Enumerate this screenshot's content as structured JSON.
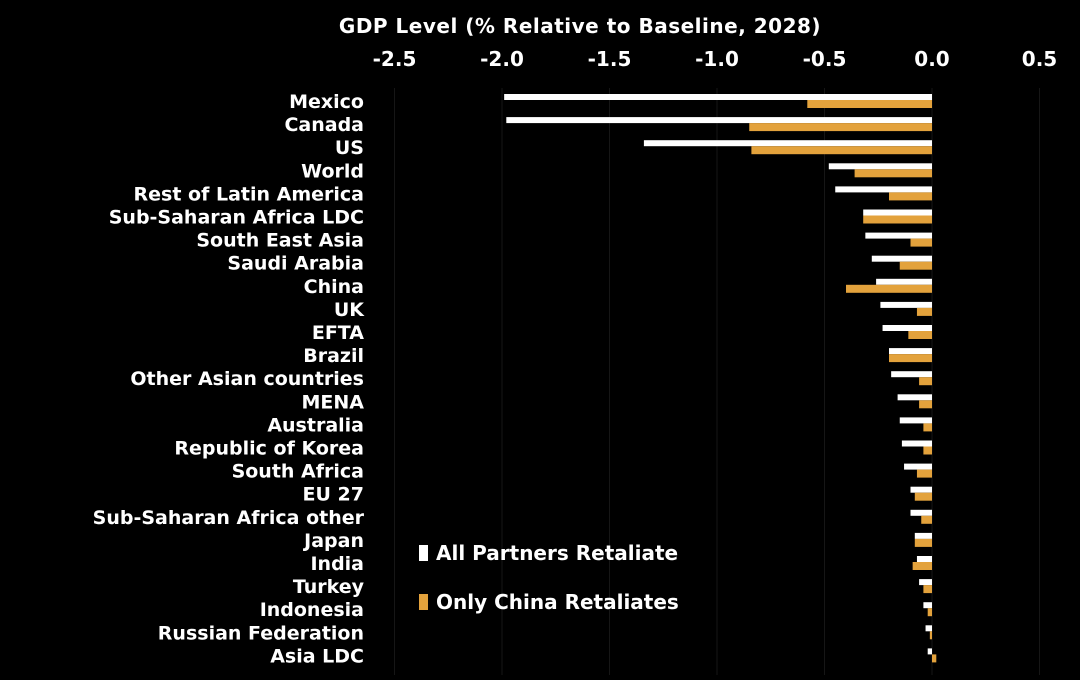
{
  "chart_data": {
    "type": "bar",
    "orientation": "horizontal",
    "title": "GDP Level (% Relative to Baseline, 2028)",
    "xlim": [
      -2.5,
      0.5
    ],
    "xticks": [
      "-2.5",
      "-2.0",
      "-1.5",
      "-1.0",
      "-0.5",
      "0.0",
      "0.5"
    ],
    "grid": false,
    "legend_position": "bottom-center",
    "colors": {
      "background": "#000000",
      "all_partners": "#ffffff",
      "only_china": "#e3a23c"
    },
    "categories": [
      "Mexico",
      "Canada",
      "US",
      "World",
      "Rest of Latin America",
      "Sub-Saharan Africa LDC",
      "South East Asia",
      "Saudi Arabia",
      "China",
      "UK",
      "EFTA",
      "Brazil",
      "Other Asian countries",
      "MENA",
      "Australia",
      "Republic of Korea",
      "South Africa",
      "EU 27",
      "Sub-Saharan Africa other",
      "Japan",
      "India",
      "Turkey",
      "Indonesia",
      "Russian Federation",
      "Asia LDC"
    ],
    "series": [
      {
        "name": "All Partners Retaliate",
        "values": [
          -1.99,
          -1.98,
          -1.34,
          -0.48,
          -0.45,
          -0.32,
          -0.31,
          -0.28,
          -0.26,
          -0.24,
          -0.23,
          -0.2,
          -0.19,
          -0.16,
          -0.15,
          -0.14,
          -0.13,
          -0.1,
          -0.1,
          -0.08,
          -0.07,
          -0.06,
          -0.04,
          -0.03,
          -0.02
        ]
      },
      {
        "name": "Only China Retaliates",
        "values": [
          -0.58,
          -0.85,
          -0.84,
          -0.36,
          -0.2,
          -0.32,
          -0.1,
          -0.15,
          -0.4,
          -0.07,
          -0.11,
          -0.2,
          -0.06,
          -0.06,
          -0.04,
          -0.04,
          -0.07,
          -0.08,
          -0.05,
          -0.08,
          -0.09,
          -0.04,
          -0.02,
          -0.01,
          0.02
        ]
      }
    ]
  }
}
